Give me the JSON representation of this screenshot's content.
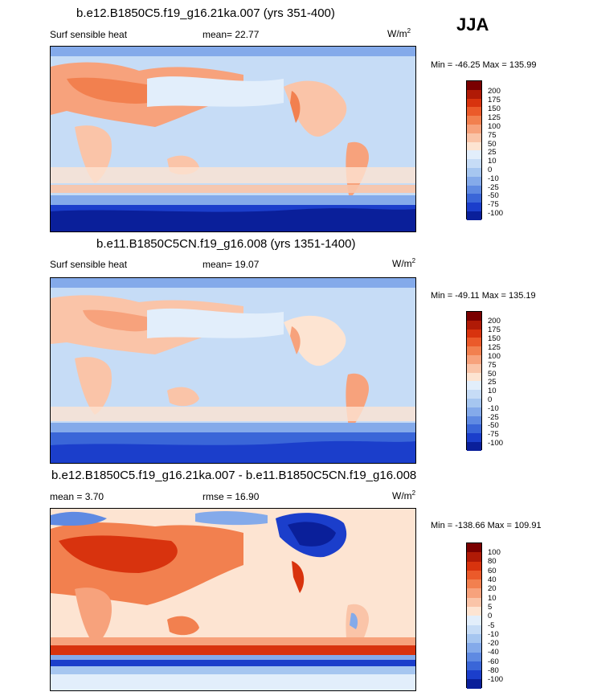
{
  "season": "JJA",
  "panels": [
    {
      "title": "b.e12.B1850C5.f19_g16.21ka.007 (yrs 351-400)",
      "left_label": "Surf sensible heat",
      "center_label": "mean=  22.77",
      "units": "W/m",
      "units_exp": "2",
      "minmax": "Min = -46.25 Max = 135.99",
      "levels": [
        "200",
        "175",
        "150",
        "125",
        "100",
        "75",
        "50",
        "25",
        "10",
        "0",
        "-10",
        "-25",
        "-50",
        "-75",
        "-100"
      ],
      "colors": [
        "#7a0000",
        "#b01a06",
        "#d8330e",
        "#eb5a2a",
        "#f2804f",
        "#f7a27c",
        "#fac4a8",
        "#fde4d2",
        "#e2eefb",
        "#c6dcf6",
        "#a6c6f0",
        "#84aaea",
        "#5f8ae2",
        "#3a66d8",
        "#1b3ecb",
        "#0a1f9a"
      ]
    },
    {
      "title": "b.e11.B1850C5CN.f19_g16.008 (yrs 1351-1400)",
      "left_label": "Surf sensible heat",
      "center_label": "mean=  19.07",
      "units": "W/m",
      "units_exp": "2",
      "minmax": "Min = -49.11 Max = 135.19",
      "levels": [
        "200",
        "175",
        "150",
        "125",
        "100",
        "75",
        "50",
        "25",
        "10",
        "0",
        "-10",
        "-25",
        "-50",
        "-75",
        "-100"
      ],
      "colors": [
        "#7a0000",
        "#b01a06",
        "#d8330e",
        "#eb5a2a",
        "#f2804f",
        "#f7a27c",
        "#fac4a8",
        "#fde4d2",
        "#e2eefb",
        "#c6dcf6",
        "#a6c6f0",
        "#84aaea",
        "#5f8ae2",
        "#3a66d8",
        "#1b3ecb",
        "#0a1f9a"
      ]
    },
    {
      "title": "b.e12.B1850C5.f19_g16.21ka.007 - b.e11.B1850C5CN.f19_g16.008",
      "left_label": "mean =   3.70",
      "center_label": "rmse =  16.90",
      "units": "W/m",
      "units_exp": "2",
      "minmax": "Min = -138.66 Max = 109.91",
      "levels": [
        "100",
        "80",
        "60",
        "40",
        "20",
        "10",
        "5",
        "0",
        "-5",
        "-10",
        "-20",
        "-40",
        "-60",
        "-80",
        "-100"
      ],
      "colors": [
        "#7a0000",
        "#b01a06",
        "#d8330e",
        "#eb5a2a",
        "#f2804f",
        "#f7a27c",
        "#fac4a8",
        "#fde4d2",
        "#e2eefb",
        "#c6dcf6",
        "#a6c6f0",
        "#84aaea",
        "#5f8ae2",
        "#3a66d8",
        "#1b3ecb",
        "#0a1f9a"
      ]
    }
  ],
  "chart_data": [
    {
      "type": "heatmap",
      "title": "b.e12.B1850C5.f19_g16.21ka.007 (yrs 351-400)",
      "variable": "Surf sensible heat",
      "units": "W/m2",
      "mean": 22.77,
      "min": -46.25,
      "max": 135.99,
      "colorbar_levels": [
        200,
        175,
        150,
        125,
        100,
        75,
        50,
        25,
        10,
        0,
        -10,
        -25,
        -50,
        -75,
        -100
      ]
    },
    {
      "type": "heatmap",
      "title": "b.e11.B1850C5CN.f19_g16.008 (yrs 1351-1400)",
      "variable": "Surf sensible heat",
      "units": "W/m2",
      "mean": 19.07,
      "min": -49.11,
      "max": 135.19,
      "colorbar_levels": [
        200,
        175,
        150,
        125,
        100,
        75,
        50,
        25,
        10,
        0,
        -10,
        -25,
        -50,
        -75,
        -100
      ]
    },
    {
      "type": "heatmap",
      "title": "b.e12.B1850C5.f19_g16.21ka.007 - b.e11.B1850C5CN.f19_g16.008",
      "units": "W/m2",
      "mean": 3.7,
      "rmse": 16.9,
      "min": -138.66,
      "max": 109.91,
      "colorbar_levels": [
        100,
        80,
        60,
        40,
        20,
        10,
        5,
        0,
        -5,
        -10,
        -20,
        -40,
        -60,
        -80,
        -100
      ]
    }
  ]
}
